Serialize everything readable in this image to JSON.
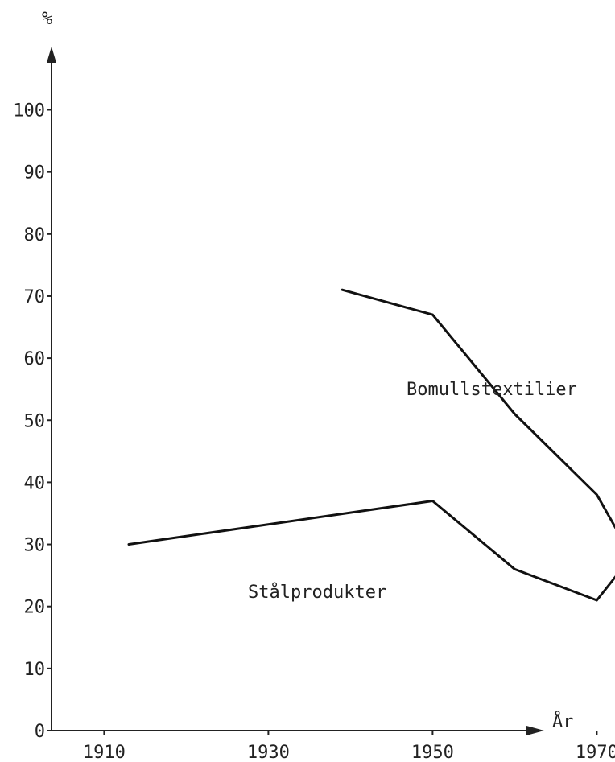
{
  "chart_data": {
    "type": "line",
    "ylabel": "%",
    "xlabel": "År",
    "ylim": [
      0,
      110
    ],
    "xlim": [
      1900,
      1978
    ],
    "y_ticks": [
      "0",
      "10",
      "20",
      "30",
      "40",
      "50",
      "60",
      "70",
      "80",
      "90",
      "100"
    ],
    "y_tick_values": [
      0,
      10,
      20,
      30,
      40,
      50,
      60,
      70,
      80,
      90,
      100
    ],
    "x_ticks": [
      "1910",
      "1930",
      "1950",
      "1970"
    ],
    "x_tick_values": [
      1910,
      1930,
      1950,
      1970
    ],
    "grid": false,
    "series": [
      {
        "name": "Bomullstextilier",
        "points": [
          [
            1939,
            71
          ],
          [
            1950,
            67
          ],
          [
            1960,
            51
          ],
          [
            1970,
            38
          ],
          [
            1973,
            31
          ]
        ]
      },
      {
        "name": "Stålprodukter",
        "points": [
          [
            1913,
            30
          ],
          [
            1950,
            37
          ],
          [
            1960,
            26
          ],
          [
            1970,
            21
          ],
          [
            1973,
            26
          ]
        ]
      }
    ],
    "line_color": "#111111"
  }
}
